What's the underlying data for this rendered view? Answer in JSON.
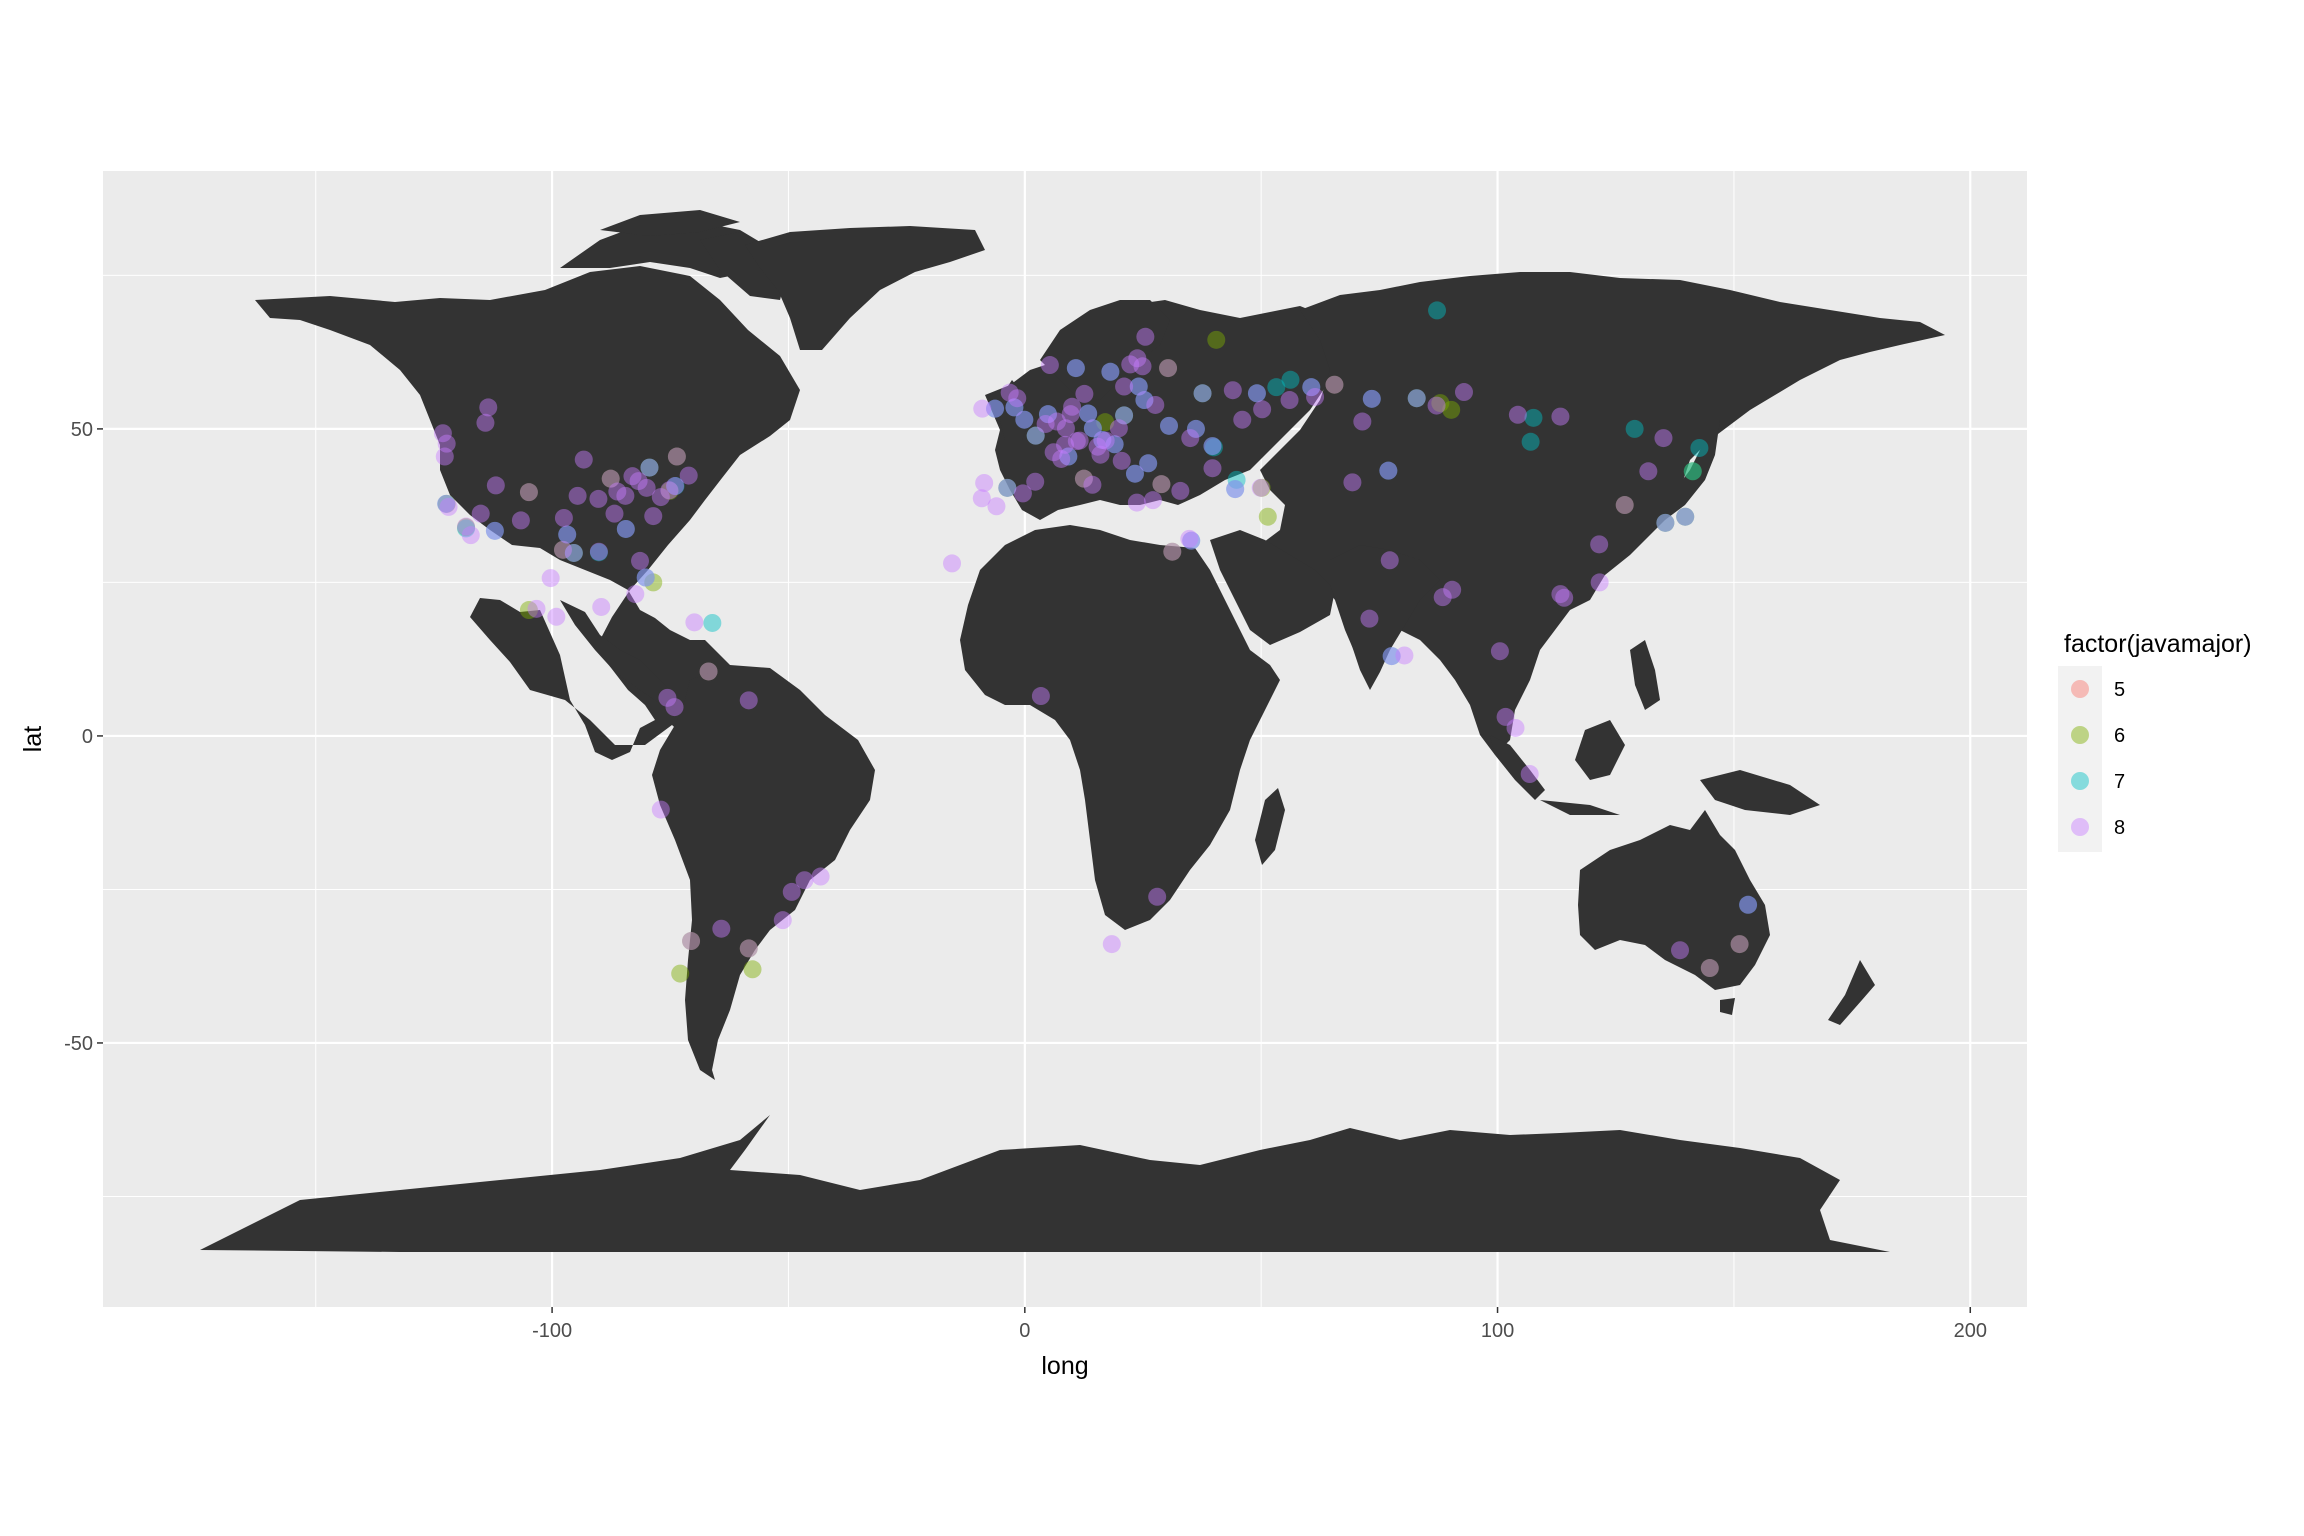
{
  "chart_data": {
    "type": "scatter",
    "title": "",
    "xlabel": "long",
    "ylabel": "lat",
    "xlim": [
      -195,
      212
    ],
    "ylim": [
      -93,
      92
    ],
    "x_ticks": [
      -100,
      0,
      100,
      200
    ],
    "x_tick_labels": [
      "-100",
      "0",
      "100",
      "200"
    ],
    "y_ticks": [
      -50,
      0,
      50
    ],
    "y_tick_labels": [
      "-50",
      "0",
      "50"
    ],
    "grid": true,
    "panel_background": "#ebebeb",
    "land_color": "#333333",
    "point_alpha": 0.45,
    "legend": {
      "title": "factor(javamajor)",
      "position": "right",
      "entries": [
        {
          "label": "5",
          "color": "#F8766D"
        },
        {
          "label": "6",
          "color": "#7CAE00"
        },
        {
          "label": "7",
          "color": "#00BFC4"
        },
        {
          "label": "8",
          "color": "#C77CFF"
        }
      ]
    },
    "series": [
      {
        "name": "5",
        "color": "#F8766D",
        "points": []
      },
      {
        "name": "6",
        "color": "#7CAE00",
        "points": [
          [
            -118.2,
            34.0
          ],
          [
            -122.3,
            37.8
          ],
          [
            -104.9,
            39.7
          ],
          [
            -87.6,
            41.9
          ],
          [
            -75.1,
            39.9
          ],
          [
            -78.6,
            25.0
          ],
          [
            -104.9,
            20.5
          ],
          [
            -95.4,
            29.8
          ],
          [
            -66.9,
            10.5
          ],
          [
            -58.4,
            -34.6
          ],
          [
            -70.6,
            -33.4
          ],
          [
            -72.9,
            -38.7
          ],
          [
            -57.6,
            -38.0
          ],
          [
            151.2,
            -33.9
          ],
          [
            144.9,
            -37.8
          ],
          [
            37.6,
            55.8
          ],
          [
            30.3,
            59.9
          ],
          [
            28.9,
            41.0
          ],
          [
            51.4,
            35.7
          ],
          [
            12.5,
            41.9
          ],
          [
            2.3,
            48.9
          ],
          [
            -3.7,
            40.4
          ],
          [
            21.0,
            52.2
          ],
          [
            139.7,
            35.7
          ],
          [
            135.5,
            34.7
          ],
          [
            126.9,
            37.6
          ],
          [
            82.9,
            55.0
          ],
          [
            90.2,
            53.1
          ],
          [
            141.3,
            43.1
          ],
          [
            50.1,
            40.4
          ],
          [
            31.2,
            30.0
          ],
          [
            -79.4,
            43.7
          ],
          [
            -73.6,
            45.5
          ],
          [
            -97.7,
            30.3
          ],
          [
            40.5,
            64.5
          ],
          [
            65.5,
            57.2
          ],
          [
            87.9,
            54.2
          ],
          [
            17.0,
            51.1
          ]
        ]
      },
      {
        "name": "7",
        "color": "#00BFC4",
        "points": [
          [
            -122.4,
            37.8
          ],
          [
            -96.8,
            32.8
          ],
          [
            -95.4,
            29.8
          ],
          [
            -118.2,
            33.8
          ],
          [
            -84.4,
            33.7
          ],
          [
            -80.2,
            25.8
          ],
          [
            -66.1,
            18.4
          ],
          [
            -79.4,
            43.7
          ],
          [
            -73.9,
            40.7
          ],
          [
            -90.1,
            29.9
          ],
          [
            -112.1,
            33.4
          ],
          [
            153.0,
            -27.5
          ],
          [
            139.7,
            35.7
          ],
          [
            141.3,
            43.1
          ],
          [
            129.0,
            50.0
          ],
          [
            142.7,
            46.9
          ],
          [
            107.6,
            51.8
          ],
          [
            107.0,
            47.9
          ],
          [
            76.9,
            43.2
          ],
          [
            37.6,
            55.8
          ],
          [
            30.5,
            50.5
          ],
          [
            49.1,
            55.8
          ],
          [
            53.2,
            56.8
          ],
          [
            60.6,
            56.8
          ],
          [
            24.1,
            56.9
          ],
          [
            25.3,
            54.7
          ],
          [
            14.4,
            50.1
          ],
          [
            16.4,
            48.2
          ],
          [
            19.0,
            47.5
          ],
          [
            21.0,
            52.2
          ],
          [
            13.4,
            52.5
          ],
          [
            2.3,
            48.9
          ],
          [
            -0.1,
            51.5
          ],
          [
            4.9,
            52.4
          ],
          [
            9.2,
            45.5
          ],
          [
            -3.7,
            40.4
          ],
          [
            35.2,
            31.8
          ],
          [
            44.8,
            41.7
          ],
          [
            44.5,
            40.2
          ],
          [
            39.7,
            47.2
          ],
          [
            36.2,
            50.0
          ],
          [
            73.4,
            54.9
          ],
          [
            82.9,
            55.0
          ],
          [
            87.2,
            69.3
          ],
          [
            77.6,
            13.0
          ],
          [
            135.5,
            34.7
          ],
          [
            26.1,
            44.4
          ],
          [
            23.3,
            42.7
          ],
          [
            18.1,
            59.3
          ],
          [
            10.8,
            59.9
          ],
          [
            -2.2,
            53.5
          ],
          [
            -6.3,
            53.3
          ],
          [
            56.2,
            58.0
          ],
          [
            40.0,
            47.0
          ]
        ]
      },
      {
        "name": "8",
        "color": "#C77CFF",
        "points": [
          [
            -122.3,
            47.6
          ],
          [
            -122.7,
            45.5
          ],
          [
            -123.1,
            49.3
          ],
          [
            -122.4,
            37.8
          ],
          [
            -121.9,
            37.3
          ],
          [
            -118.2,
            34.1
          ],
          [
            -117.2,
            32.7
          ],
          [
            -111.9,
            40.8
          ],
          [
            -104.9,
            39.7
          ],
          [
            -97.7,
            30.3
          ],
          [
            -96.8,
            32.8
          ],
          [
            -95.4,
            29.8
          ],
          [
            -93.3,
            45.0
          ],
          [
            -90.2,
            38.6
          ],
          [
            -87.6,
            41.9
          ],
          [
            -86.2,
            39.8
          ],
          [
            -84.5,
            39.1
          ],
          [
            -83.0,
            42.3
          ],
          [
            -81.7,
            41.5
          ],
          [
            -80.0,
            40.4
          ],
          [
            -79.4,
            43.7
          ],
          [
            -77.0,
            38.9
          ],
          [
            -75.2,
            40.0
          ],
          [
            -74.0,
            40.7
          ],
          [
            -71.1,
            42.4
          ],
          [
            -73.6,
            45.5
          ],
          [
            -84.4,
            33.7
          ],
          [
            -81.4,
            28.5
          ],
          [
            -80.2,
            25.8
          ],
          [
            -90.1,
            30.0
          ],
          [
            -86.8,
            36.2
          ],
          [
            -78.6,
            35.8
          ],
          [
            -97.5,
            35.5
          ],
          [
            -94.6,
            39.1
          ],
          [
            -106.6,
            35.1
          ],
          [
            -112.1,
            33.4
          ],
          [
            -115.1,
            36.2
          ],
          [
            -113.5,
            53.5
          ],
          [
            -114.1,
            51.0
          ],
          [
            -99.1,
            19.4
          ],
          [
            -103.3,
            20.7
          ],
          [
            -100.3,
            25.7
          ],
          [
            -74.1,
            4.7
          ],
          [
            -75.6,
            6.2
          ],
          [
            -77.0,
            -12.0
          ],
          [
            -46.6,
            -23.5
          ],
          [
            -43.2,
            -22.9
          ],
          [
            -49.3,
            -25.4
          ],
          [
            -51.2,
            -30.0
          ],
          [
            -58.4,
            -34.6
          ],
          [
            -64.2,
            -31.4
          ],
          [
            -70.6,
            -33.4
          ],
          [
            18.4,
            -33.9
          ],
          [
            28.0,
            -26.2
          ],
          [
            3.4,
            6.5
          ],
          [
            31.2,
            30.0
          ],
          [
            -15.4,
            28.1
          ],
          [
            -0.1,
            51.5
          ],
          [
            2.3,
            48.9
          ],
          [
            4.9,
            52.4
          ],
          [
            8.7,
            50.1
          ],
          [
            11.6,
            48.1
          ],
          [
            13.4,
            52.5
          ],
          [
            10.0,
            53.6
          ],
          [
            12.6,
            55.7
          ],
          [
            18.1,
            59.3
          ],
          [
            10.8,
            59.9
          ],
          [
            24.9,
            60.2
          ],
          [
            30.3,
            59.9
          ],
          [
            37.6,
            55.8
          ],
          [
            21.0,
            52.2
          ],
          [
            19.9,
            50.1
          ],
          [
            14.4,
            50.1
          ],
          [
            16.4,
            48.2
          ],
          [
            19.0,
            47.5
          ],
          [
            26.1,
            44.4
          ],
          [
            23.3,
            42.7
          ],
          [
            20.5,
            44.8
          ],
          [
            16.0,
            45.8
          ],
          [
            12.5,
            41.9
          ],
          [
            9.2,
            45.5
          ],
          [
            7.7,
            45.1
          ],
          [
            14.3,
            40.9
          ],
          [
            -3.7,
            40.4
          ],
          [
            2.2,
            41.4
          ],
          [
            -9.1,
            38.7
          ],
          [
            -8.6,
            41.2
          ],
          [
            -0.4,
            39.5
          ],
          [
            -6.0,
            37.4
          ],
          [
            28.9,
            41.0
          ],
          [
            32.9,
            39.9
          ],
          [
            27.1,
            38.4
          ],
          [
            23.7,
            38.0
          ],
          [
            35.2,
            31.8
          ],
          [
            34.8,
            32.1
          ],
          [
            30.5,
            50.5
          ],
          [
            36.2,
            50.0
          ],
          [
            35.0,
            48.5
          ],
          [
            27.6,
            53.9
          ],
          [
            24.1,
            56.9
          ],
          [
            25.3,
            54.7
          ],
          [
            44.5,
            40.2
          ],
          [
            49.9,
            40.4
          ],
          [
            49.1,
            55.8
          ],
          [
            44.0,
            56.3
          ],
          [
            39.7,
            47.2
          ],
          [
            56.0,
            54.7
          ],
          [
            61.4,
            55.2
          ],
          [
            73.4,
            54.9
          ],
          [
            76.9,
            43.2
          ],
          [
            69.3,
            41.3
          ],
          [
            82.9,
            55.0
          ],
          [
            92.9,
            56.0
          ],
          [
            104.3,
            52.3
          ],
          [
            113.3,
            52.0
          ],
          [
            135.1,
            48.5
          ],
          [
            131.9,
            43.1
          ],
          [
            126.9,
            37.6
          ],
          [
            139.7,
            35.7
          ],
          [
            135.5,
            34.7
          ],
          [
            121.5,
            31.2
          ],
          [
            114.1,
            22.5
          ],
          [
            113.3,
            23.1
          ],
          [
            121.6,
            25.0
          ],
          [
            100.5,
            13.8
          ],
          [
            103.8,
            1.3
          ],
          [
            101.7,
            3.1
          ],
          [
            106.8,
            -6.2
          ],
          [
            72.9,
            19.1
          ],
          [
            77.2,
            28.6
          ],
          [
            77.6,
            13.0
          ],
          [
            80.3,
            13.1
          ],
          [
            88.4,
            22.6
          ],
          [
            90.4,
            23.8
          ],
          [
            144.9,
            -37.8
          ],
          [
            138.6,
            -34.9
          ],
          [
            151.2,
            -33.9
          ],
          [
            153.0,
            -27.5
          ],
          [
            -9.0,
            53.3
          ],
          [
            -6.3,
            53.3
          ],
          [
            -3.2,
            55.9
          ],
          [
            -1.6,
            55.0
          ],
          [
            -2.2,
            53.5
          ],
          [
            5.3,
            60.4
          ],
          [
            8.5,
            47.4
          ],
          [
            6.1,
            46.2
          ],
          [
            4.4,
            50.8
          ],
          [
            6.8,
            51.2
          ],
          [
            9.7,
            52.4
          ],
          [
            11.0,
            48.0
          ],
          [
            15.4,
            47.1
          ],
          [
            17.1,
            48.1
          ],
          [
            21.0,
            56.9
          ],
          [
            22.3,
            60.5
          ],
          [
            23.8,
            61.5
          ],
          [
            25.5,
            65.0
          ],
          [
            39.7,
            43.6
          ],
          [
            46.0,
            51.5
          ],
          [
            50.2,
            53.2
          ],
          [
            60.6,
            56.8
          ],
          [
            65.5,
            57.2
          ],
          [
            71.4,
            51.2
          ],
          [
            87.1,
            53.8
          ],
          [
            -66.9,
            10.5
          ],
          [
            -69.9,
            18.5
          ],
          [
            -58.4,
            5.8
          ],
          [
            -82.4,
            23.1
          ],
          [
            -89.6,
            21.0
          ]
        ]
      }
    ]
  }
}
